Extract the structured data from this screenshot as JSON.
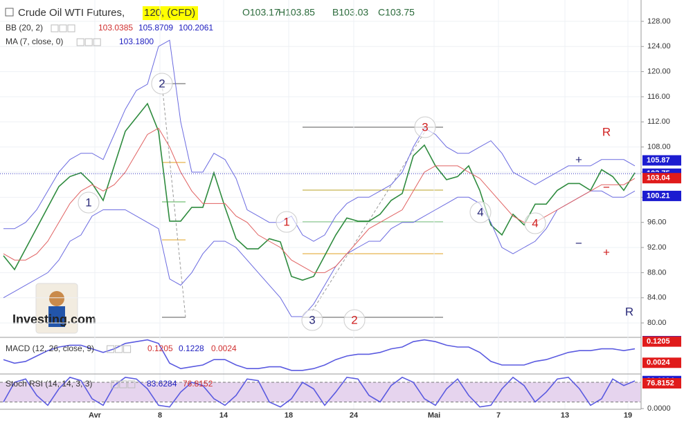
{
  "chart_data": [
    {
      "type": "line",
      "symbol": "Crude Oil WTI Futures,",
      "interval": "120, (CFD)",
      "ohlc": [
        "O103.17",
        "H103.85",
        "B103.03",
        "C103.75"
      ],
      "legends": [
        {
          "label": "BB (20, 2)",
          "values": [
            103.0385,
            105.8709,
            100.2061
          ],
          "colors": [
            "#d03030",
            "#2020c0",
            "#2020c0"
          ]
        },
        {
          "label": "MA (7, close, 0)",
          "values": [
            {
              "value": 103.18,
              "label": "103.1800"
            }
          ],
          "colors": [
            "#2020c0"
          ]
        }
      ],
      "watermark": "Investing.com",
      "x": [
        0,
        1,
        2,
        3,
        4,
        5,
        6,
        7,
        8,
        9,
        10,
        11,
        12,
        13,
        14,
        15,
        16,
        17,
        18,
        19,
        20,
        21,
        22,
        23,
        24,
        25,
        26,
        27,
        28,
        29,
        30,
        31,
        32,
        33,
        34,
        35,
        36,
        37,
        38,
        39,
        40,
        41,
        42,
        43,
        44,
        45,
        46,
        47,
        48,
        49,
        50,
        51,
        52,
        53,
        54,
        55,
        56,
        57
      ],
      "xlim": [
        -0.3125,
        57.5
      ],
      "xticks": [
        {
          "value": 8.25,
          "label": "Avr"
        },
        {
          "value": 14.125,
          "label": "8"
        },
        {
          "value": 19.875,
          "label": "14"
        },
        {
          "value": 25.75,
          "label": "18"
        },
        {
          "value": 31.625,
          "label": "24"
        },
        {
          "value": 38.875,
          "label": "Mai"
        },
        {
          "value": 44.6875,
          "label": "7"
        },
        {
          "value": 50.6875,
          "label": "13"
        },
        {
          "value": 56.375,
          "label": "19"
        }
      ],
      "ylim": [
        77.7,
        131.4
      ],
      "yticks": [
        {
          "value": 80,
          "label": "80.00"
        },
        {
          "value": 84,
          "label": "84.00"
        },
        {
          "value": 88,
          "label": "88.00"
        },
        {
          "value": 92,
          "label": "92.00"
        },
        {
          "value": 96,
          "label": "96.00"
        },
        {
          "value": 100,
          "label": "100.00"
        },
        {
          "value": 104,
          "label": "104.00"
        },
        {
          "value": 108,
          "label": "108.00"
        },
        {
          "value": 112,
          "label": "112.00"
        },
        {
          "value": 116,
          "label": "116.00"
        },
        {
          "value": 120,
          "label": "120.00"
        },
        {
          "value": 124,
          "label": "124.00"
        },
        {
          "value": 128,
          "label": "128.00"
        }
      ],
      "grid": true,
      "series": [
        {
          "color": "#2e8b3e",
          "values": [
            90.7,
            88.5,
            91.8,
            95.1,
            98.4,
            101.7,
            103.3,
            103.9,
            102.2,
            99.5,
            105,
            110.5,
            112.7,
            114.9,
            110.5,
            96.2,
            96.2,
            98.4,
            98.4,
            103.9,
            98.4,
            93.4,
            91.8,
            91.8,
            93.4,
            92.9,
            87.4,
            86.8,
            87.4,
            90.7,
            94.0,
            96.7,
            96.2,
            96.2,
            97.3,
            99.5,
            100.6,
            106.6,
            108.3,
            105.0,
            102.8,
            103.3,
            105,
            101.1,
            95.6,
            94.0,
            97.3,
            95.6,
            98.9,
            98.9,
            101.1,
            102.2,
            102.2,
            101.1,
            104.4,
            103.3,
            101.1,
            103.9
          ]
        },
        {
          "color": "#6a6ae0",
          "values": [
            95,
            95,
            96,
            98,
            101,
            104,
            106,
            107,
            107,
            106,
            110,
            114,
            117,
            118,
            124,
            125,
            112,
            104,
            104,
            107,
            106,
            103,
            98,
            97,
            96,
            96,
            97,
            94,
            93,
            94,
            97,
            99,
            100,
            100,
            101,
            102,
            104,
            108,
            111,
            110,
            108,
            107,
            107,
            108,
            109,
            107,
            104,
            103,
            102,
            103,
            104,
            105,
            105,
            105,
            106,
            106,
            106,
            105
          ]
        },
        {
          "color": "#6a6ae0",
          "values": [
            84,
            85,
            86,
            87,
            88,
            90,
            93,
            94,
            97,
            98,
            98,
            98,
            97,
            96,
            95,
            87,
            86,
            88,
            91,
            93,
            93,
            92,
            90,
            88,
            86,
            84,
            81,
            81,
            83,
            86,
            89,
            91,
            92,
            93,
            93,
            95,
            96,
            96,
            97,
            98,
            99,
            100,
            100,
            99,
            96,
            92,
            91,
            92,
            93,
            95,
            98,
            99,
            100,
            101,
            101,
            100,
            100,
            101
          ]
        },
        {
          "color": "#e06060",
          "values": [
            91,
            90,
            90,
            91,
            93,
            96,
            99,
            101,
            102,
            101,
            102,
            104,
            107,
            110,
            111,
            108,
            104,
            101,
            99,
            99,
            99,
            97,
            96,
            94,
            93,
            92,
            90,
            89,
            88,
            88,
            89,
            91,
            93,
            95,
            96,
            97,
            98,
            101,
            104,
            105,
            105,
            105,
            104,
            103,
            101,
            99,
            97,
            96,
            96,
            97,
            98,
            99,
            100,
            101,
            102,
            102,
            102,
            103
          ]
        }
      ],
      "markers": [
        {
          "value": 105.87,
          "color": "#1c1cd0"
        },
        {
          "value": 103.75,
          "color": "#1c1cd0"
        },
        {
          "value": 103.18,
          "color": "#1c1cd0"
        },
        {
          "value": 103.04,
          "color": "#e01b1b"
        },
        {
          "value": 100.21,
          "color": "#1c1cd0"
        }
      ],
      "annotations": [
        {
          "text": "1",
          "color": "#2b2b7a"
        },
        {
          "text": "2",
          "color": "#2b2b7a"
        },
        {
          "text": "3",
          "color": "#2b2b7a"
        },
        {
          "text": "2",
          "color": "#d02020"
        },
        {
          "text": "1",
          "color": "#d02020"
        },
        {
          "text": "3",
          "color": "#d02020"
        },
        {
          "text": "4",
          "color": "#2b2b7a"
        },
        {
          "text": "4",
          "color": "#d02020"
        },
        {
          "text": "R",
          "color": "#d02020"
        },
        {
          "text": "R",
          "color": "#2b2b7a"
        },
        {
          "text": "+",
          "color": "#2b2b7a"
        },
        {
          "text": "−",
          "color": "#d02020"
        },
        {
          "text": "−",
          "color": "#2b2b7a"
        },
        {
          "text": "+",
          "color": "#d02020"
        }
      ]
    },
    {
      "type": "line",
      "legends": [
        {
          "label": "MACD (12, 26, close, 9)",
          "values": [
            0.1205,
            0.1228,
            0.0024
          ],
          "colors": [
            "#d03030",
            "#2020c0",
            "#d03030"
          ]
        }
      ],
      "x": [
        0,
        1,
        2,
        3,
        4,
        5,
        6,
        7,
        8,
        9,
        10,
        11,
        12,
        13,
        14,
        15,
        16,
        17,
        18,
        19,
        20,
        21,
        22,
        23,
        24,
        25,
        26,
        27,
        28,
        29,
        30,
        31,
        32,
        33,
        34,
        35,
        36,
        37,
        38,
        39,
        40,
        41,
        42,
        43,
        44,
        45,
        46,
        47,
        48,
        49,
        50,
        51,
        52,
        53,
        54,
        55,
        56,
        57
      ],
      "xlim": [
        -0.3125,
        57.5
      ],
      "ylim": [
        -0.06,
        0.14
      ],
      "series": [
        {
          "color": "#5a5ae0",
          "values": [
            0.02,
            0.0,
            0.01,
            0.04,
            0.07,
            0.09,
            0.1,
            0.1,
            0.08,
            0.06,
            0.08,
            0.11,
            0.12,
            0.13,
            0.11,
            0.0,
            -0.03,
            -0.02,
            -0.01,
            0.02,
            0.02,
            -0.01,
            -0.03,
            -0.03,
            -0.02,
            -0.02,
            -0.04,
            -0.04,
            -0.03,
            -0.01,
            0.02,
            0.04,
            0.05,
            0.05,
            0.06,
            0.08,
            0.09,
            0.12,
            0.13,
            0.12,
            0.1,
            0.09,
            0.09,
            0.06,
            0.01,
            -0.01,
            -0.01,
            -0.01,
            0.01,
            0.02,
            0.04,
            0.06,
            0.07,
            0.07,
            0.08,
            0.08,
            0.07,
            0.08
          ]
        }
      ],
      "markers": [
        {
          "value": 0.1228,
          "color": "#1c1cd0"
        },
        {
          "value": 0.1205,
          "color": "#e01b1b"
        },
        {
          "value": 0.0024,
          "color": "#e01b1b"
        }
      ]
    },
    {
      "type": "line",
      "legends": [
        {
          "label": "Stoch RSI (14, 14, 3, 3)",
          "values": [
            83.6284,
            76.8152
          ],
          "colors": [
            "#2020c0",
            "#d03030"
          ]
        }
      ],
      "x": [
        0,
        1,
        2,
        3,
        4,
        5,
        6,
        7,
        8,
        9,
        10,
        11,
        12,
        13,
        14,
        15,
        16,
        17,
        18,
        19,
        20,
        21,
        22,
        23,
        24,
        25,
        26,
        27,
        28,
        29,
        30,
        31,
        32,
        33,
        34,
        35,
        36,
        37,
        38,
        39,
        40,
        41,
        42,
        43,
        44,
        45,
        46,
        47,
        48,
        49,
        50,
        51,
        52,
        53,
        54,
        55,
        56,
        57
      ],
      "xlim": [
        -0.3125,
        57.5
      ],
      "ylim": [
        -2,
        103
      ],
      "yticks": [
        {
          "value": 0,
          "label": "0.0000"
        }
      ],
      "band": [
        20,
        80
      ],
      "series": [
        {
          "color": "#5a5ae0",
          "values": [
            20,
            80,
            90,
            40,
            10,
            60,
            95,
            85,
            30,
            10,
            70,
            95,
            90,
            60,
            10,
            5,
            50,
            80,
            70,
            30,
            10,
            40,
            90,
            85,
            20,
            5,
            30,
            80,
            60,
            10,
            50,
            95,
            90,
            40,
            20,
            70,
            95,
            80,
            30,
            10,
            60,
            90,
            40,
            5,
            10,
            60,
            95,
            70,
            20,
            50,
            90,
            95,
            60,
            10,
            30,
            90,
            70,
            84
          ]
        }
      ],
      "markers": [
        {
          "value": 83.6284,
          "color": "#1c1cd0"
        },
        {
          "value": 76.8152,
          "color": "#e01b1b"
        }
      ]
    }
  ]
}
